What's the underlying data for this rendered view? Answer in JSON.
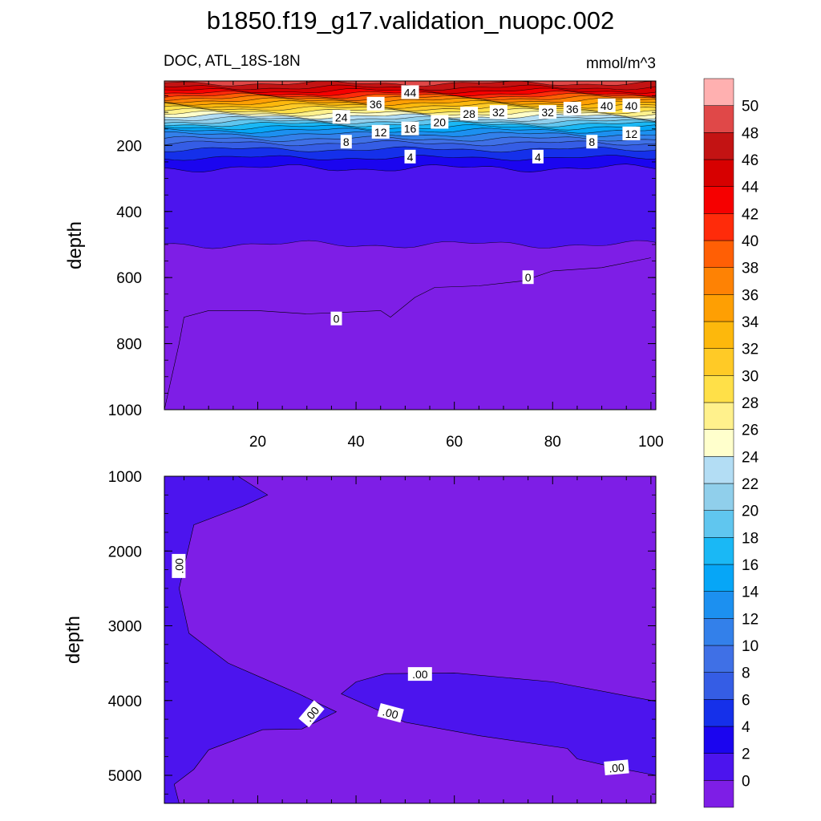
{
  "chart_data": [
    {
      "type": "heatmap",
      "subtype": "filled-contour",
      "title": "b1850.f19_g17.validation_nuopc.002",
      "left_string": "DOC, ATL_18S-18N",
      "right_string": "mmol/m^3",
      "ylabel": "depth",
      "xlabel": "",
      "xlim": [
        1,
        101
      ],
      "ylim": [
        1000,
        5
      ],
      "xticks": [
        20,
        40,
        60,
        80,
        100
      ],
      "yticks": [
        200,
        400,
        600,
        800,
        1000
      ],
      "grid": false,
      "depth_profile": [
        {
          "depth": 5,
          "value": 49
        },
        {
          "depth": 20,
          "value": 47
        },
        {
          "depth": 40,
          "value": 43
        },
        {
          "depth": 60,
          "value": 37
        },
        {
          "depth": 80,
          "value": 32
        },
        {
          "depth": 100,
          "value": 27
        },
        {
          "depth": 120,
          "value": 22
        },
        {
          "depth": 140,
          "value": 17
        },
        {
          "depth": 160,
          "value": 13
        },
        {
          "depth": 180,
          "value": 10
        },
        {
          "depth": 200,
          "value": 7
        },
        {
          "depth": 230,
          "value": 4.5
        },
        {
          "depth": 260,
          "value": 2.5
        },
        {
          "depth": 290,
          "value": 0.8
        },
        {
          "depth": 320,
          "value": 0.4
        },
        {
          "depth": 500,
          "value": 0.2
        }
      ],
      "zero_contour_boundary": [
        {
          "x": 1,
          "depth": 1000
        },
        {
          "x": 4,
          "depth": 800
        },
        {
          "x": 5,
          "depth": 720
        },
        {
          "x": 10,
          "depth": 700
        },
        {
          "x": 20,
          "depth": 700
        },
        {
          "x": 30,
          "depth": 710
        },
        {
          "x": 45,
          "depth": 700
        },
        {
          "x": 47,
          "depth": 720
        },
        {
          "x": 52,
          "depth": 660
        },
        {
          "x": 56,
          "depth": 630
        },
        {
          "x": 65,
          "depth": 625
        },
        {
          "x": 74,
          "depth": 610
        },
        {
          "x": 80,
          "depth": 580
        },
        {
          "x": 90,
          "depth": 570
        },
        {
          "x": 100,
          "depth": 540
        }
      ],
      "contour_labels": [
        {
          "text": "44",
          "x": 51,
          "depth": 40
        },
        {
          "text": "36",
          "x": 44,
          "depth": 75
        },
        {
          "text": "24",
          "x": 37,
          "depth": 115
        },
        {
          "text": "12",
          "x": 45,
          "depth": 160
        },
        {
          "text": "16",
          "x": 51,
          "depth": 150
        },
        {
          "text": "20",
          "x": 57,
          "depth": 130
        },
        {
          "text": "28",
          "x": 63,
          "depth": 105
        },
        {
          "text": "32",
          "x": 69,
          "depth": 100
        },
        {
          "text": "32",
          "x": 79,
          "depth": 100
        },
        {
          "text": "36",
          "x": 84,
          "depth": 90
        },
        {
          "text": "40",
          "x": 91,
          "depth": 80
        },
        {
          "text": "40",
          "x": 96,
          "depth": 80
        },
        {
          "text": "12",
          "x": 96,
          "depth": 165
        },
        {
          "text": "8",
          "x": 38,
          "depth": 190
        },
        {
          "text": "8",
          "x": 88,
          "depth": 190
        },
        {
          "text": "4",
          "x": 51,
          "depth": 235
        },
        {
          "text": "4",
          "x": 77,
          "depth": 235
        },
        {
          "text": "0",
          "x": 75,
          "depth": 600
        },
        {
          "text": "0",
          "x": 36,
          "depth": 725
        }
      ]
    },
    {
      "type": "heatmap",
      "subtype": "filled-contour",
      "ylabel": "depth",
      "xlabel": "",
      "xlim": [
        1,
        101
      ],
      "ylim": [
        5375,
        1000
      ],
      "yticks": [
        1000,
        2000,
        3000,
        4000,
        5000
      ],
      "grid": false,
      "regions": [
        {
          "level": "below-0",
          "outline": [
            {
              "x": 1,
              "depth": 1000
            },
            {
              "x": 16,
              "depth": 1000
            },
            {
              "x": 22,
              "depth": 1250
            },
            {
              "x": 17,
              "depth": 1400
            },
            {
              "x": 7,
              "depth": 1650
            },
            {
              "x": 4,
              "depth": 2500
            },
            {
              "x": 6,
              "depth": 3100
            },
            {
              "x": 14,
              "depth": 3500
            },
            {
              "x": 21,
              "depth": 3700
            },
            {
              "x": 28,
              "depth": 3900
            },
            {
              "x": 36,
              "depth": 4150
            },
            {
              "x": 29,
              "depth": 4380
            },
            {
              "x": 21,
              "depth": 4390
            },
            {
              "x": 10,
              "depth": 4660
            },
            {
              "x": 7,
              "depth": 4920
            },
            {
              "x": 3,
              "depth": 5120
            },
            {
              "x": 4,
              "depth": 5375
            },
            {
              "x": 1,
              "depth": 5375
            }
          ]
        },
        {
          "level": "below-0",
          "outline": [
            {
              "x": 37,
              "depth": 3910
            },
            {
              "x": 40,
              "depth": 3750
            },
            {
              "x": 46,
              "depth": 3640
            },
            {
              "x": 60,
              "depth": 3630
            },
            {
              "x": 80,
              "depth": 3750
            },
            {
              "x": 101,
              "depth": 4010
            },
            {
              "x": 101,
              "depth": 5000
            },
            {
              "x": 93,
              "depth": 4900
            },
            {
              "x": 85,
              "depth": 4780
            },
            {
              "x": 83,
              "depth": 4640
            },
            {
              "x": 65,
              "depth": 4470
            },
            {
              "x": 50,
              "depth": 4290
            }
          ]
        }
      ],
      "contour_labels": [
        {
          "text": ".00",
          "x": 4,
          "depth": 2200,
          "rotation": -90
        },
        {
          "text": ".00",
          "x": 53,
          "depth": 3650,
          "rotation": 0
        },
        {
          "text": ".00",
          "x": 31,
          "depth": 4180,
          "rotation": -50
        },
        {
          "text": ".00",
          "x": 47,
          "depth": 4170,
          "rotation": 15
        },
        {
          "text": ".00",
          "x": 93,
          "depth": 4900,
          "rotation": -5
        }
      ]
    }
  ],
  "colorbar": {
    "levels": [
      "0",
      "2",
      "4",
      "6",
      "8",
      "10",
      "12",
      "14",
      "16",
      "18",
      "20",
      "22",
      "24",
      "26",
      "28",
      "30",
      "32",
      "34",
      "36",
      "38",
      "40",
      "42",
      "44",
      "46",
      "48",
      "50"
    ],
    "colors": [
      "#7e1ee6",
      "#4c14ee",
      "#1b05ef",
      "#1530ea",
      "#355de5",
      "#3f70e6",
      "#3380ea",
      "#1c90f0",
      "#06a6f7",
      "#1ab8f5",
      "#60c6ef",
      "#90cfeb",
      "#b3ddf4",
      "#ffffcc",
      "#fff18c",
      "#ffe048",
      "#ffca26",
      "#fdb80c",
      "#fe9f03",
      "#fe8204",
      "#ff5f05",
      "#ff2b0a",
      "#f60000",
      "#d70000",
      "#c31313",
      "#e04848",
      "#ffb0b0"
    ]
  }
}
